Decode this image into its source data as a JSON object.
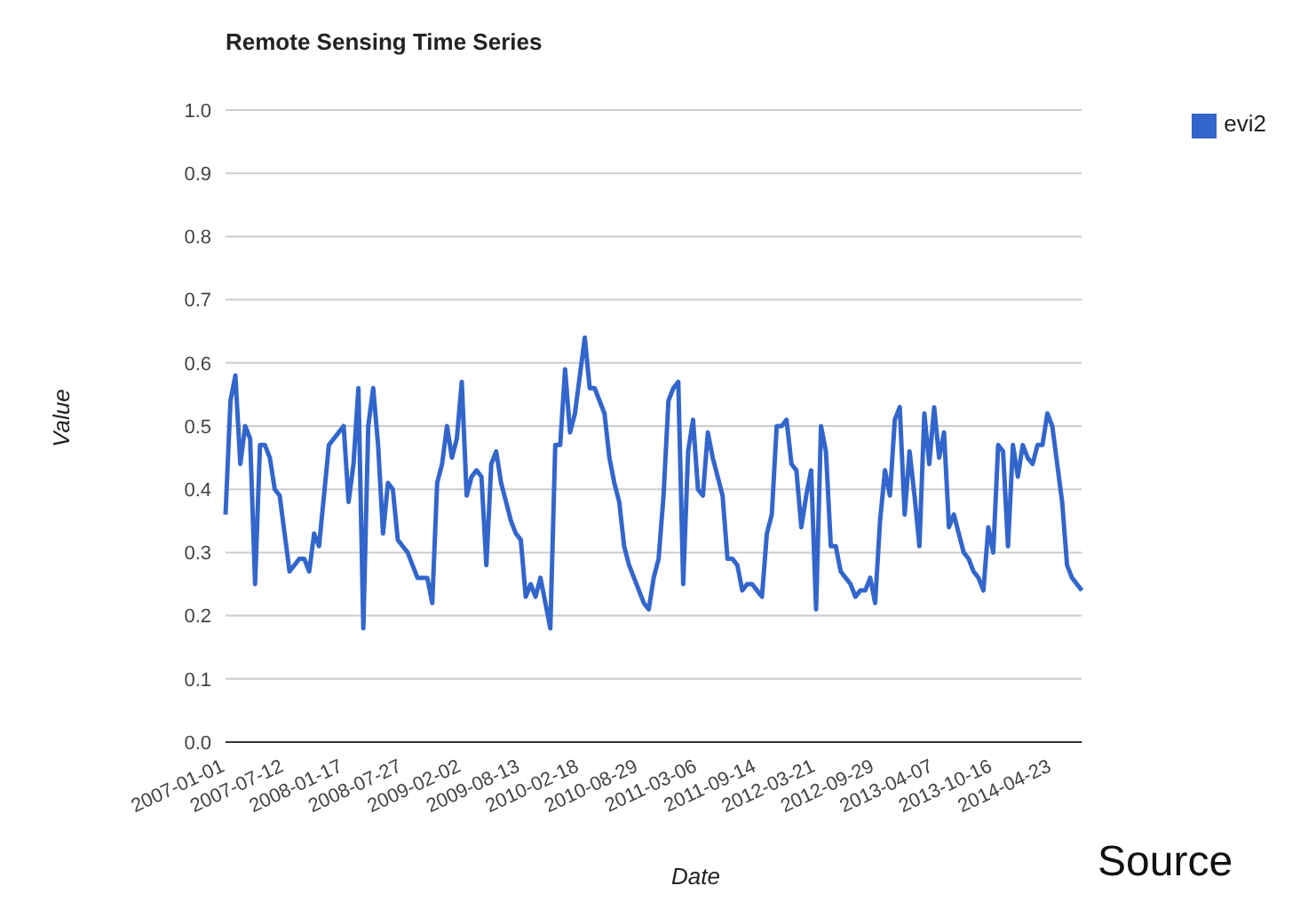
{
  "chart_data": {
    "type": "line",
    "title": "Remote Sensing Time Series",
    "xlabel": "Date",
    "ylabel": "Value",
    "annotations": [
      "Source"
    ],
    "categories": [
      "2007-01-01",
      null,
      null,
      null,
      null,
      null,
      null,
      null,
      null,
      null,
      null,
      null,
      "2007-07-12",
      null,
      null,
      null,
      null,
      null,
      null,
      null,
      null,
      null,
      null,
      null,
      "2008-01-17",
      null,
      null,
      null,
      null,
      null,
      null,
      null,
      null,
      null,
      null,
      null,
      "2008-07-27",
      null,
      null,
      null,
      null,
      null,
      null,
      null,
      null,
      null,
      null,
      null,
      "2009-02-02",
      null,
      null,
      null,
      null,
      null,
      null,
      null,
      null,
      null,
      null,
      null,
      "2009-08-13",
      null,
      null,
      null,
      null,
      null,
      null,
      null,
      null,
      null,
      null,
      null,
      "2010-02-18",
      null,
      null,
      null,
      null,
      null,
      null,
      null,
      null,
      null,
      null,
      null,
      "2010-08-29",
      null,
      null,
      null,
      null,
      null,
      null,
      null,
      null,
      null,
      null,
      null,
      "2011-03-06",
      null,
      null,
      null,
      null,
      null,
      null,
      null,
      null,
      null,
      null,
      null,
      "2011-09-14",
      null,
      null,
      null,
      null,
      null,
      null,
      null,
      null,
      null,
      null,
      null,
      "2012-03-21",
      null,
      null,
      null,
      null,
      null,
      null,
      null,
      null,
      null,
      null,
      null,
      "2012-09-29",
      null,
      null,
      null,
      null,
      null,
      null,
      null,
      null,
      null,
      null,
      null,
      "2013-04-07",
      null,
      null,
      null,
      null,
      null,
      null,
      null,
      null,
      null,
      null,
      null,
      "2013-10-16",
      null,
      null,
      null,
      null,
      null,
      null,
      null,
      null,
      null,
      null,
      null,
      "2014-04-23",
      null,
      null,
      null,
      null,
      null,
      null
    ],
    "ylim": [
      0,
      1
    ],
    "yticks": [
      {
        "value": 0,
        "label": "0.0"
      },
      0.1,
      0.2,
      0.3,
      0.4,
      0.5,
      0.6,
      0.7,
      0.8,
      0.9,
      {
        "value": 1,
        "label": "1.0"
      }
    ],
    "grid": "y",
    "legend": "top right",
    "marker": "none",
    "line_style": "solid",
    "series": [
      {
        "name": "evi2",
        "color": "#3366cc",
        "values": [
          0.36,
          0.54,
          0.58,
          0.44,
          0.5,
          0.48,
          0.25,
          0.47,
          0.47,
          0.45,
          0.4,
          0.39,
          0.33,
          0.27,
          0.28,
          0.29,
          0.29,
          0.27,
          0.33,
          0.31,
          0.39,
          0.47,
          0.48,
          0.49,
          0.5,
          0.38,
          0.44,
          0.56,
          0.18,
          0.5,
          0.56,
          0.47,
          0.33,
          0.41,
          0.4,
          0.32,
          0.31,
          0.3,
          0.28,
          0.26,
          0.26,
          0.26,
          0.22,
          0.41,
          0.44,
          0.5,
          0.45,
          0.48,
          0.57,
          0.39,
          0.42,
          0.43,
          0.42,
          0.28,
          0.44,
          0.46,
          0.41,
          0.38,
          0.35,
          0.33,
          0.32,
          0.23,
          0.25,
          0.23,
          0.26,
          0.22,
          0.18,
          0.47,
          0.47,
          0.59,
          0.49,
          0.52,
          0.58,
          0.64,
          0.56,
          0.56,
          0.54,
          0.52,
          0.45,
          0.41,
          0.38,
          0.31,
          0.28,
          0.26,
          0.24,
          0.22,
          0.21,
          0.26,
          0.29,
          0.39,
          0.54,
          0.56,
          0.57,
          0.25,
          0.46,
          0.51,
          0.4,
          0.39,
          0.49,
          0.45,
          0.42,
          0.39,
          0.29,
          0.29,
          0.28,
          0.24,
          0.25,
          0.25,
          0.24,
          0.23,
          0.33,
          0.36,
          0.5,
          0.5,
          0.51,
          0.44,
          0.43,
          0.34,
          0.39,
          0.43,
          0.21,
          0.5,
          0.46,
          0.31,
          0.31,
          0.27,
          0.26,
          0.25,
          0.23,
          0.24,
          0.24,
          0.26,
          0.22,
          0.35,
          0.43,
          0.39,
          0.51,
          0.53,
          0.36,
          0.46,
          0.39,
          0.31,
          0.52,
          0.44,
          0.53,
          0.45,
          0.49,
          0.34,
          0.36,
          0.33,
          0.3,
          0.29,
          0.27,
          0.26,
          0.24,
          0.34,
          0.3,
          0.47,
          0.46,
          0.31,
          0.47,
          0.42,
          0.47,
          0.45,
          0.44,
          0.47,
          0.47,
          0.52,
          0.5,
          0.44,
          0.38,
          0.28,
          0.26,
          0.25,
          0.24
        ]
      }
    ]
  }
}
